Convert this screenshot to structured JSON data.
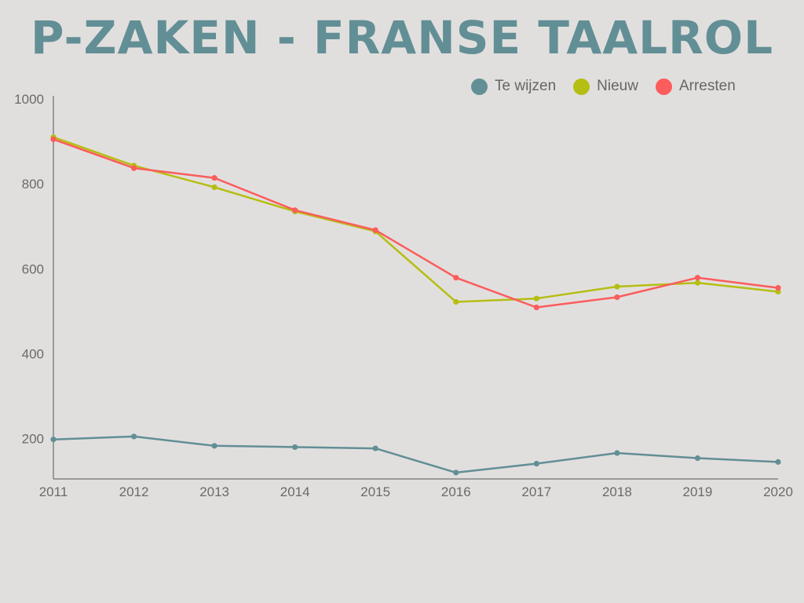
{
  "chart_data": {
    "type": "line",
    "title": "P-ZAKEN - FRANSE TAALROL",
    "x": [
      "2011",
      "2012",
      "2013",
      "2014",
      "2015",
      "2016",
      "2017",
      "2018",
      "2019",
      "2020"
    ],
    "ylim": [
      105,
      1000
    ],
    "yticks": [
      200,
      400,
      600,
      800,
      1000
    ],
    "grid": false,
    "legend_position": "top-right",
    "series": [
      {
        "name": "Te wijzen",
        "color": "#628f95",
        "values": [
          198,
          205,
          183,
          180,
          177,
          120,
          141,
          166,
          154,
          145
        ]
      },
      {
        "name": "Nieuw",
        "color": "#b5be12",
        "values": [
          910,
          843,
          792,
          735,
          688,
          522,
          530,
          558,
          567,
          546
        ]
      },
      {
        "name": "Arresten",
        "color": "#fb5c5c",
        "values": [
          905,
          837,
          814,
          738,
          691,
          579,
          509,
          533,
          579,
          555
        ]
      }
    ]
  }
}
